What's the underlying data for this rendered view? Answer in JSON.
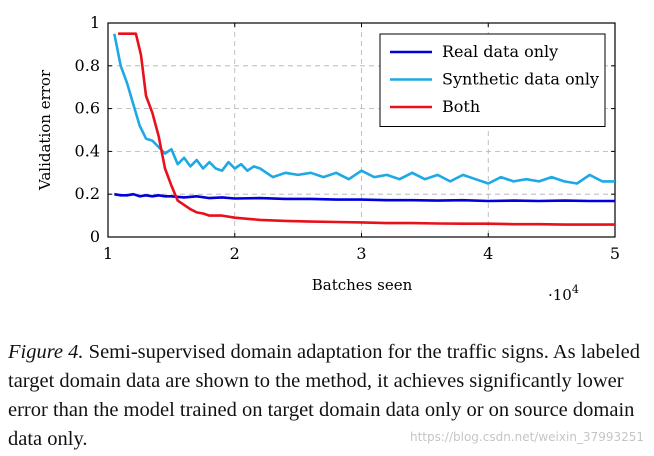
{
  "chart_data": {
    "type": "line",
    "title": "",
    "xlabel": "Batches seen",
    "ylabel": "Validation error",
    "x_multiplier": "·10",
    "x_multiplier_exp": "4",
    "xlim": [
      1,
      5
    ],
    "ylim": [
      0,
      1
    ],
    "xticks": [
      1,
      2,
      3,
      4,
      5
    ],
    "yticks": [
      0,
      0.2,
      0.4,
      0.6,
      0.8,
      1
    ],
    "ytick_labels": [
      "0",
      "0.2",
      "0.4",
      "0.6",
      "0.8",
      "1"
    ],
    "grid": true,
    "legend_position": "top-right",
    "series": [
      {
        "name": "Real data only",
        "color": "#0000dd",
        "x": [
          1.05,
          1.1,
          1.15,
          1.2,
          1.25,
          1.3,
          1.35,
          1.4,
          1.45,
          1.5,
          1.6,
          1.7,
          1.8,
          1.9,
          2.0,
          2.2,
          2.4,
          2.6,
          2.8,
          3.0,
          3.2,
          3.4,
          3.6,
          3.8,
          4.0,
          4.2,
          4.4,
          4.6,
          4.8,
          5.0
        ],
        "y": [
          0.2,
          0.195,
          0.195,
          0.2,
          0.19,
          0.195,
          0.19,
          0.195,
          0.19,
          0.19,
          0.185,
          0.19,
          0.182,
          0.185,
          0.18,
          0.182,
          0.178,
          0.178,
          0.175,
          0.175,
          0.172,
          0.172,
          0.17,
          0.172,
          0.168,
          0.17,
          0.168,
          0.17,
          0.168,
          0.168
        ]
      },
      {
        "name": "Synthetic data only",
        "color": "#1ea8e6",
        "x": [
          1.05,
          1.1,
          1.15,
          1.2,
          1.25,
          1.3,
          1.35,
          1.4,
          1.45,
          1.5,
          1.55,
          1.6,
          1.65,
          1.7,
          1.75,
          1.8,
          1.85,
          1.9,
          1.95,
          2.0,
          2.05,
          2.1,
          2.15,
          2.2,
          2.3,
          2.4,
          2.5,
          2.6,
          2.7,
          2.8,
          2.9,
          3.0,
          3.1,
          3.2,
          3.3,
          3.4,
          3.5,
          3.6,
          3.7,
          3.8,
          3.9,
          4.0,
          4.1,
          4.2,
          4.3,
          4.4,
          4.5,
          4.6,
          4.7,
          4.8,
          4.9,
          5.0
        ],
        "y": [
          0.95,
          0.8,
          0.72,
          0.62,
          0.52,
          0.46,
          0.45,
          0.42,
          0.39,
          0.41,
          0.34,
          0.37,
          0.33,
          0.36,
          0.32,
          0.35,
          0.32,
          0.31,
          0.35,
          0.32,
          0.34,
          0.31,
          0.33,
          0.32,
          0.28,
          0.3,
          0.29,
          0.3,
          0.28,
          0.3,
          0.27,
          0.31,
          0.28,
          0.29,
          0.27,
          0.3,
          0.27,
          0.29,
          0.26,
          0.29,
          0.27,
          0.25,
          0.28,
          0.26,
          0.27,
          0.26,
          0.28,
          0.26,
          0.25,
          0.29,
          0.26,
          0.26
        ]
      },
      {
        "name": "Both",
        "color": "#e8101a",
        "x": [
          1.08,
          1.12,
          1.18,
          1.22,
          1.26,
          1.3,
          1.35,
          1.4,
          1.45,
          1.5,
          1.55,
          1.6,
          1.65,
          1.7,
          1.75,
          1.8,
          1.9,
          2.0,
          2.1,
          2.2,
          2.4,
          2.6,
          2.8,
          3.0,
          3.2,
          3.4,
          3.6,
          3.8,
          4.0,
          4.2,
          4.4,
          4.6,
          4.8,
          5.0
        ],
        "y": [
          0.95,
          0.95,
          0.95,
          0.95,
          0.85,
          0.66,
          0.58,
          0.47,
          0.32,
          0.24,
          0.17,
          0.15,
          0.13,
          0.115,
          0.11,
          0.1,
          0.1,
          0.09,
          0.085,
          0.08,
          0.075,
          0.072,
          0.07,
          0.068,
          0.065,
          0.065,
          0.063,
          0.062,
          0.062,
          0.06,
          0.06,
          0.058,
          0.058,
          0.058
        ]
      }
    ]
  },
  "caption": {
    "label": "Figure 4.",
    "text": "Semi-supervised domain adaptation for the traffic signs. As labeled target domain data are shown to the method, it achieves significantly lower error than the model trained on target domain data only or on source domain data only."
  },
  "watermark": "https://blog.csdn.net/weixin_37993251"
}
